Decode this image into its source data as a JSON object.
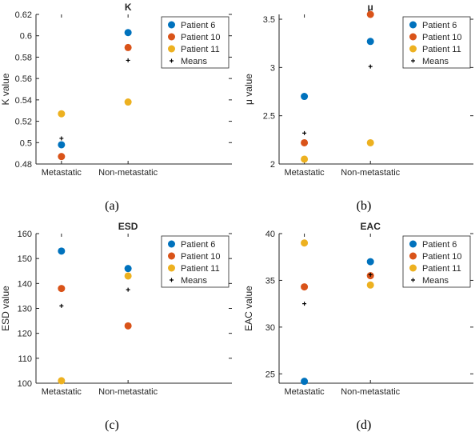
{
  "marker_colors": {
    "Patient 6": "#0072BD",
    "Patient 10": "#D95319",
    "Patient 11": "#EDB120",
    "Means": "#000000"
  },
  "chart_data": [
    {
      "type": "scatter",
      "caption": "(a)",
      "title": "K",
      "ylabel": "K value",
      "xlabel": "",
      "categories": [
        "Metastatic",
        "Non-metastatic"
      ],
      "ylim": [
        0.48,
        0.62
      ],
      "yticks": [
        0.48,
        0.5,
        0.52,
        0.54,
        0.56,
        0.58,
        0.6,
        0.62
      ],
      "ytick_labels": [
        "0.48",
        "0.5",
        "0.52",
        "0.54",
        "0.56",
        "0.58",
        "0.6",
        "0.62"
      ],
      "legend_position": "top-right",
      "series": [
        {
          "name": "Patient 6",
          "values": [
            0.498,
            0.603
          ]
        },
        {
          "name": "Patient 10",
          "values": [
            0.487,
            0.589
          ]
        },
        {
          "name": "Patient 11",
          "values": [
            0.527,
            0.538
          ]
        },
        {
          "name": "Means",
          "values": [
            0.504,
            0.577
          ]
        }
      ]
    },
    {
      "type": "scatter",
      "caption": "(b)",
      "title": "μ",
      "ylabel": "μ value",
      "xlabel": "",
      "categories": [
        "Metastatic",
        "Non-metastatic"
      ],
      "ylim": [
        2,
        3.55
      ],
      "yticks": [
        2,
        2.5,
        3,
        3.5
      ],
      "ytick_labels": [
        "2",
        "2.5",
        "3",
        "3.5"
      ],
      "legend_position": "top-right",
      "series": [
        {
          "name": "Patient 6",
          "values": [
            2.7,
            3.27
          ]
        },
        {
          "name": "Patient 10",
          "values": [
            2.22,
            3.55
          ]
        },
        {
          "name": "Patient 11",
          "values": [
            2.05,
            2.22
          ]
        },
        {
          "name": "Means",
          "values": [
            2.32,
            3.01
          ]
        }
      ]
    },
    {
      "type": "scatter",
      "caption": "(c)",
      "title": "ESD",
      "ylabel": "ESD value",
      "xlabel": "",
      "categories": [
        "Metastatic",
        "Non-metastatic"
      ],
      "ylim": [
        100,
        160
      ],
      "yticks": [
        100,
        110,
        120,
        130,
        140,
        150,
        160
      ],
      "ytick_labels": [
        "100",
        "110",
        "120",
        "130",
        "140",
        "150",
        "160"
      ],
      "legend_position": "top-right",
      "series": [
        {
          "name": "Patient 6",
          "values": [
            153,
            146
          ]
        },
        {
          "name": "Patient 10",
          "values": [
            138,
            123
          ]
        },
        {
          "name": "Patient 11",
          "values": [
            101,
            143
          ]
        },
        {
          "name": "Means",
          "values": [
            131,
            137.5
          ]
        }
      ]
    },
    {
      "type": "scatter",
      "caption": "(d)",
      "title": "EAC",
      "ylabel": "EAC value",
      "xlabel": "",
      "categories": [
        "Metastatic",
        "Non-metastatic"
      ],
      "ylim": [
        24,
        40
      ],
      "yticks": [
        25,
        30,
        35,
        40
      ],
      "ytick_labels": [
        "25",
        "30",
        "35",
        "40"
      ],
      "legend_position": "top-right",
      "series": [
        {
          "name": "Patient 6",
          "values": [
            24.2,
            37
          ]
        },
        {
          "name": "Patient 10",
          "values": [
            34.3,
            35.5
          ]
        },
        {
          "name": "Patient 11",
          "values": [
            39,
            34.5
          ]
        },
        {
          "name": "Means",
          "values": [
            32.5,
            35.6
          ]
        }
      ]
    }
  ]
}
